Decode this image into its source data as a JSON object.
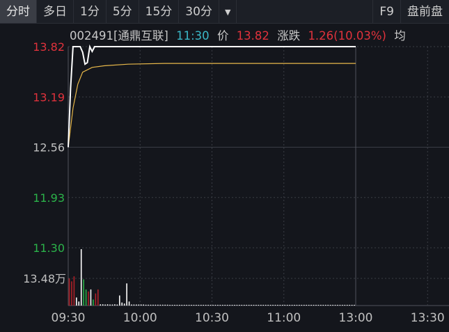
{
  "tabs": [
    {
      "label": "分时",
      "active": true
    },
    {
      "label": "多日"
    },
    {
      "label": "1分"
    },
    {
      "label": "5分"
    },
    {
      "label": "15分"
    },
    {
      "label": "30分"
    }
  ],
  "more_icon": "dropdown-arrow-icon",
  "right_tabs": [
    {
      "label": "F9"
    },
    {
      "label": "盘前盘"
    }
  ],
  "info": {
    "code": "002491",
    "name": "[通鼎互联]",
    "time": "11:30",
    "price_label": "价",
    "price": "13.82",
    "change_label": "涨跌",
    "change": "1.26(10.03%)",
    "avg_label": "均"
  },
  "colors": {
    "up": "#e0323c",
    "down": "#2bb34a",
    "time": "#3ab8c8",
    "price_line": "#ffffff",
    "avg_line": "#e8b84a",
    "grid": "#3a3d45"
  },
  "chart_data": {
    "type": "line",
    "y_ticks": [
      {
        "label": "13.82",
        "value": 13.82,
        "color": "up"
      },
      {
        "label": "13.19",
        "value": 13.19,
        "color": "up"
      },
      {
        "label": "12.56",
        "value": 12.56,
        "color": "neutral"
      },
      {
        "label": "11.93",
        "value": 11.93,
        "color": "down"
      },
      {
        "label": "11.30",
        "value": 11.3,
        "color": "down"
      }
    ],
    "ylim": [
      11.3,
      13.82
    ],
    "x_ticks": [
      "09:30",
      "10:00",
      "10:30",
      "11:00",
      "13:00",
      "13:30"
    ],
    "price": [
      [
        "09:30",
        12.56
      ],
      [
        "09:31",
        13.3
      ],
      [
        "09:32",
        13.82
      ],
      [
        "09:35",
        13.82
      ],
      [
        "09:36",
        13.75
      ],
      [
        "09:37",
        13.6
      ],
      [
        "09:38",
        13.62
      ],
      [
        "09:39",
        13.82
      ],
      [
        "09:40",
        13.76
      ],
      [
        "09:41",
        13.82
      ],
      [
        "11:30",
        13.82
      ]
    ],
    "avg_price": [
      [
        "09:30",
        12.56
      ],
      [
        "09:32",
        13.05
      ],
      [
        "09:34",
        13.35
      ],
      [
        "09:36",
        13.5
      ],
      [
        "09:40",
        13.56
      ],
      [
        "09:45",
        13.58
      ],
      [
        "09:55",
        13.6
      ],
      [
        "10:10",
        13.61
      ],
      [
        "11:30",
        13.61
      ]
    ],
    "volume_label": "13.48万",
    "volume_ref": 13.48,
    "volume_unit": "万",
    "volume": [
      [
        13.5,
        "up"
      ],
      [
        12,
        "up"
      ],
      [
        14.5,
        "up"
      ],
      [
        4,
        "flat"
      ],
      [
        2,
        "flat"
      ],
      [
        28,
        "flat"
      ],
      [
        13,
        "down"
      ],
      [
        8,
        "down"
      ],
      [
        7,
        "up"
      ],
      [
        8,
        "flat"
      ],
      [
        3,
        "down"
      ],
      [
        6,
        "up"
      ],
      [
        8,
        "up"
      ],
      [
        0.6,
        "flat"
      ],
      [
        0.6,
        "flat"
      ],
      [
        0.5,
        "flat"
      ],
      [
        0.6,
        "flat"
      ],
      [
        0.5,
        "flat"
      ],
      [
        0.5,
        "flat"
      ],
      [
        0.6,
        "flat"
      ],
      [
        0.5,
        "flat"
      ],
      [
        5,
        "flat"
      ],
      [
        1.5,
        "flat"
      ],
      [
        1,
        "flat"
      ],
      [
        11,
        "flat"
      ],
      [
        2,
        "flat"
      ],
      [
        0.5,
        "flat"
      ],
      [
        0.5,
        "flat"
      ],
      [
        0.5,
        "flat"
      ],
      [
        0.5,
        "flat"
      ],
      [
        0.5,
        "flat"
      ],
      [
        0.5,
        "flat"
      ],
      [
        0.4,
        "flat"
      ],
      [
        0.4,
        "flat"
      ],
      [
        0.4,
        "flat"
      ],
      [
        0.4,
        "flat"
      ],
      [
        0.4,
        "flat"
      ],
      [
        0.4,
        "flat"
      ],
      [
        0.4,
        "flat"
      ],
      [
        0.4,
        "flat"
      ],
      [
        0.4,
        "flat"
      ],
      [
        0.4,
        "flat"
      ],
      [
        0.3,
        "flat"
      ],
      [
        0.3,
        "flat"
      ],
      [
        0.3,
        "flat"
      ],
      [
        0.3,
        "flat"
      ],
      [
        0.3,
        "flat"
      ],
      [
        0.3,
        "flat"
      ],
      [
        0.3,
        "flat"
      ],
      [
        0.3,
        "flat"
      ],
      [
        0.3,
        "flat"
      ],
      [
        0.3,
        "flat"
      ],
      [
        0.3,
        "flat"
      ],
      [
        0.3,
        "flat"
      ],
      [
        0.3,
        "flat"
      ],
      [
        0.3,
        "flat"
      ],
      [
        0.3,
        "flat"
      ],
      [
        0.3,
        "flat"
      ],
      [
        0.3,
        "flat"
      ],
      [
        0.3,
        "flat"
      ],
      [
        0.3,
        "flat"
      ],
      [
        0.3,
        "flat"
      ],
      [
        0.3,
        "flat"
      ],
      [
        0.3,
        "flat"
      ],
      [
        0.3,
        "flat"
      ],
      [
        0.3,
        "flat"
      ],
      [
        0.3,
        "flat"
      ],
      [
        0.3,
        "flat"
      ],
      [
        0.3,
        "flat"
      ],
      [
        0.3,
        "flat"
      ],
      [
        0.3,
        "flat"
      ],
      [
        0.3,
        "flat"
      ],
      [
        0.3,
        "flat"
      ],
      [
        0.3,
        "flat"
      ],
      [
        0.3,
        "flat"
      ],
      [
        0.3,
        "flat"
      ],
      [
        0.3,
        "flat"
      ],
      [
        0.3,
        "flat"
      ],
      [
        0.3,
        "flat"
      ],
      [
        0.3,
        "flat"
      ],
      [
        0.3,
        "flat"
      ],
      [
        0.3,
        "flat"
      ],
      [
        0.3,
        "flat"
      ],
      [
        0.3,
        "flat"
      ],
      [
        0.3,
        "flat"
      ],
      [
        0.3,
        "flat"
      ],
      [
        0.3,
        "flat"
      ],
      [
        0.3,
        "flat"
      ],
      [
        0.3,
        "flat"
      ],
      [
        0.3,
        "flat"
      ],
      [
        0.3,
        "flat"
      ],
      [
        0.3,
        "flat"
      ],
      [
        0.3,
        "flat"
      ],
      [
        0.3,
        "flat"
      ],
      [
        0.3,
        "flat"
      ],
      [
        0.3,
        "flat"
      ],
      [
        0.3,
        "flat"
      ],
      [
        0.3,
        "flat"
      ],
      [
        0.3,
        "flat"
      ],
      [
        0.3,
        "flat"
      ],
      [
        0.3,
        "flat"
      ],
      [
        0.3,
        "flat"
      ],
      [
        0.3,
        "flat"
      ],
      [
        0.3,
        "flat"
      ],
      [
        0.3,
        "flat"
      ],
      [
        0.3,
        "flat"
      ],
      [
        0.3,
        "flat"
      ],
      [
        0.3,
        "flat"
      ],
      [
        0.3,
        "flat"
      ],
      [
        0.3,
        "flat"
      ],
      [
        0.3,
        "flat"
      ],
      [
        0.3,
        "flat"
      ],
      [
        0.3,
        "flat"
      ],
      [
        0.3,
        "flat"
      ],
      [
        0.3,
        "flat"
      ],
      [
        0.3,
        "flat"
      ],
      [
        0.3,
        "flat"
      ],
      [
        0.3,
        "flat"
      ],
      [
        0.3,
        "flat"
      ],
      [
        0.3,
        "flat"
      ]
    ]
  }
}
